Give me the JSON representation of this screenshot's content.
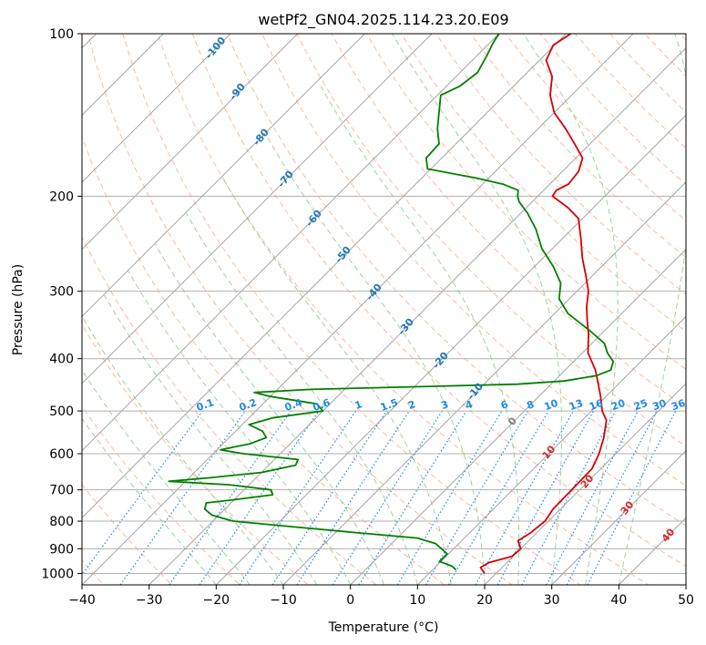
{
  "chart_data": {
    "type": "line",
    "title": "wetPf2_GN04.2025.114.23.20.E09",
    "xlabel": "Temperature (°C)",
    "ylabel": "Pressure (hPa)",
    "x_ticks": [
      -40,
      -30,
      -20,
      -10,
      0,
      10,
      20,
      30,
      40,
      50
    ],
    "y_ticks": [
      100,
      200,
      300,
      400,
      500,
      600,
      700,
      800,
      900,
      1000
    ],
    "xlim": [
      -40,
      50
    ],
    "ylim": [
      1050,
      100
    ],
    "y_scale": "log",
    "skew": true,
    "grid": true,
    "series": [
      {
        "color": "#d50000",
        "points": [
          [
            1000,
            18.3
          ],
          [
            975,
            16.8
          ],
          [
            955,
            17.3
          ],
          [
            930,
            19.8
          ],
          [
            900,
            20.0
          ],
          [
            870,
            18.4
          ],
          [
            840,
            19.1
          ],
          [
            800,
            19.5
          ],
          [
            760,
            18.9
          ],
          [
            700,
            18.8
          ],
          [
            640,
            18.7
          ],
          [
            600,
            17.5
          ],
          [
            560,
            15.8
          ],
          [
            520,
            13.6
          ],
          [
            500,
            11.6
          ],
          [
            470,
            9.2
          ],
          [
            450,
            7.4
          ],
          [
            420,
            4.5
          ],
          [
            390,
            0.8
          ],
          [
            360,
            -1.9
          ],
          [
            340,
            -4.1
          ],
          [
            320,
            -6.3
          ],
          [
            300,
            -8.3
          ],
          [
            280,
            -11.1
          ],
          [
            260,
            -14.2
          ],
          [
            240,
            -17.2
          ],
          [
            220,
            -20.6
          ],
          [
            210,
            -23.8
          ],
          [
            200,
            -27.8
          ],
          [
            195,
            -28.1
          ],
          [
            190,
            -27.2
          ],
          [
            180,
            -27.6
          ],
          [
            170,
            -29.0
          ],
          [
            160,
            -32.3
          ],
          [
            150,
            -35.9
          ],
          [
            140,
            -40.0
          ],
          [
            130,
            -43.2
          ],
          [
            120,
            -45.7
          ],
          [
            112,
            -49.0
          ],
          [
            105,
            -50.2
          ],
          [
            100,
            -49.3
          ]
        ]
      },
      {
        "color": "#008000",
        "points": [
          [
            985,
            13.5
          ],
          [
            970,
            12.4
          ],
          [
            950,
            9.8
          ],
          [
            920,
            9.8
          ],
          [
            900,
            8.2
          ],
          [
            880,
            6.5
          ],
          [
            860,
            3.0
          ],
          [
            840,
            -7.0
          ],
          [
            820,
            -17.0
          ],
          [
            800,
            -27.0
          ],
          [
            780,
            -31.0
          ],
          [
            760,
            -33.0
          ],
          [
            740,
            -33.7
          ],
          [
            730,
            -30.0
          ],
          [
            715,
            -25.0
          ],
          [
            700,
            -26.0
          ],
          [
            685,
            -33.0
          ],
          [
            675,
            -42.5
          ],
          [
            665,
            -37.0
          ],
          [
            650,
            -30.0
          ],
          [
            630,
            -26.0
          ],
          [
            615,
            -26.5
          ],
          [
            600,
            -35.5
          ],
          [
            590,
            -39.5
          ],
          [
            575,
            -36.0
          ],
          [
            560,
            -34.5
          ],
          [
            545,
            -36.0
          ],
          [
            530,
            -39.0
          ],
          [
            515,
            -36.5
          ],
          [
            500,
            -30.0
          ],
          [
            485,
            -32.0
          ],
          [
            470,
            -40.0
          ],
          [
            462,
            -43.0
          ],
          [
            456,
            -35.0
          ],
          [
            450,
            -17.0
          ],
          [
            446,
            -5.0
          ],
          [
            440,
            1.5
          ],
          [
            430,
            5.5
          ],
          [
            420,
            6.8
          ],
          [
            405,
            5.9
          ],
          [
            390,
            3.7
          ],
          [
            375,
            1.9
          ],
          [
            355,
            -2.2
          ],
          [
            330,
            -8.0
          ],
          [
            310,
            -11.5
          ],
          [
            290,
            -13.6
          ],
          [
            270,
            -17.2
          ],
          [
            250,
            -21.6
          ],
          [
            230,
            -25.4
          ],
          [
            215,
            -29.0
          ],
          [
            205,
            -31.9
          ],
          [
            200,
            -33.0
          ],
          [
            195,
            -33.8
          ],
          [
            190,
            -37.0
          ],
          [
            185,
            -42.0
          ],
          [
            178,
            -50.5
          ],
          [
            170,
            -52.3
          ],
          [
            160,
            -52.5
          ],
          [
            150,
            -55.0
          ],
          [
            130,
            -59.5
          ],
          [
            125,
            -58.0
          ],
          [
            118,
            -57.4
          ],
          [
            110,
            -58.5
          ],
          [
            104,
            -59.5
          ],
          [
            100,
            -60.0
          ]
        ]
      }
    ],
    "dry_adiabat_labels": [
      "-100",
      "-90",
      "-80",
      "-70",
      "-60",
      "-50",
      "-40",
      "-30",
      "-20",
      "-10",
      "0",
      "10",
      "20",
      "30",
      "40"
    ],
    "mixing_ratio_labels": [
      "0.1",
      "0.2",
      "0.4",
      "0.6",
      "1",
      "1.5",
      "2",
      "3",
      "4",
      "6",
      "8",
      "10",
      "13",
      "16",
      "20",
      "25",
      "30",
      "36"
    ],
    "colors": {
      "isobar": "#b0b0b0",
      "isotherm": "#9a9a9a",
      "dry_adiabat": "#f4a582",
      "moist_adiabat": "#8fc98f",
      "mixing_ratio": "#1e88e5",
      "saturation_curve": "#d2b48c",
      "dry_label_cold": "#1f77b4",
      "dry_label_warm": "#d62728",
      "dry_label_zero": "#7f7f7f",
      "mixing_label": "#1e88e5"
    }
  }
}
